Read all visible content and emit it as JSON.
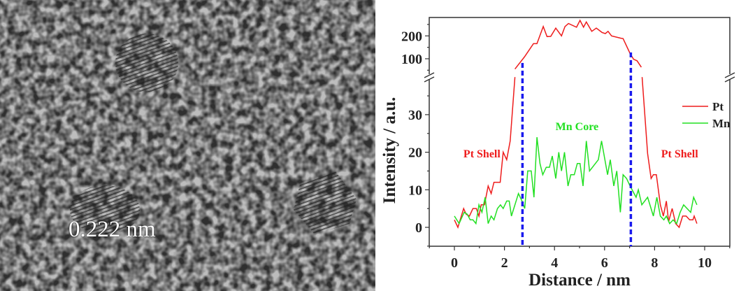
{
  "image_panel": {
    "scale_label": "0.222 nm"
  },
  "chart_data": {
    "type": "line",
    "xlabel": "Distance / nm",
    "ylabel": "Intensity / a.u.",
    "xlim": [
      -1,
      11
    ],
    "x_ticks": [
      0,
      2,
      4,
      6,
      8,
      10
    ],
    "y_lower_range": [
      -5,
      40
    ],
    "y_upper_range": [
      20,
      282
    ],
    "y_lower_ticks": [
      0,
      10,
      20,
      30
    ],
    "y_upper_ticks": [
      100,
      200
    ],
    "axis_break": true,
    "grid": false,
    "legend_position": "right",
    "colors": {
      "Pt": "#ee1c1c",
      "Mn": "#22e022",
      "boundary": "#1a1aee"
    },
    "series": [
      {
        "name": "Pt",
        "points": [
          [
            0,
            2
          ],
          [
            0.14,
            0
          ],
          [
            0.37,
            5
          ],
          [
            0.47,
            3.5
          ],
          [
            0.6,
            3
          ],
          [
            0.74,
            5
          ],
          [
            0.88,
            5
          ],
          [
            0.98,
            3
          ],
          [
            1.07,
            6
          ],
          [
            1.2,
            6
          ],
          [
            1.35,
            11
          ],
          [
            1.47,
            9
          ],
          [
            1.58,
            12
          ],
          [
            1.83,
            12
          ],
          [
            1.95,
            20
          ],
          [
            2.09,
            18
          ],
          [
            2.23,
            23
          ],
          [
            2.42,
            40
          ],
          [
            2.42,
            55
          ],
          [
            2.8,
            108
          ],
          [
            3.16,
            166
          ],
          [
            3.3,
            166
          ],
          [
            3.55,
            241
          ],
          [
            3.7,
            197
          ],
          [
            3.85,
            198
          ],
          [
            4.05,
            234
          ],
          [
            4.28,
            200
          ],
          [
            4.42,
            241
          ],
          [
            4.56,
            254
          ],
          [
            4.88,
            238
          ],
          [
            5.02,
            268
          ],
          [
            5.16,
            238
          ],
          [
            5.27,
            261
          ],
          [
            5.49,
            220
          ],
          [
            5.67,
            234
          ],
          [
            5.9,
            215
          ],
          [
            6.03,
            210
          ],
          [
            6.14,
            220
          ],
          [
            6.28,
            200
          ],
          [
            6.65,
            190
          ],
          [
            6.74,
            188
          ],
          [
            7.02,
            123
          ],
          [
            7.16,
            98
          ],
          [
            7.3,
            91
          ],
          [
            7.47,
            63
          ],
          [
            7.5,
            40
          ],
          [
            7.72,
            19.6
          ],
          [
            7.86,
            13
          ],
          [
            7.95,
            14
          ],
          [
            8.07,
            14
          ],
          [
            8.23,
            6
          ],
          [
            8.35,
            3
          ],
          [
            8.47,
            7
          ],
          [
            8.56,
            1.5
          ],
          [
            8.7,
            5
          ],
          [
            8.84,
            1
          ],
          [
            8.98,
            0
          ],
          [
            9.12,
            3
          ],
          [
            9.26,
            3
          ],
          [
            9.4,
            2
          ],
          [
            9.53,
            2
          ],
          [
            9.58,
            3
          ],
          [
            9.69,
            1
          ]
        ]
      },
      {
        "name": "Mn",
        "points": [
          [
            0,
            3
          ],
          [
            0.19,
            1
          ],
          [
            0.39,
            4
          ],
          [
            0.51,
            3.5
          ],
          [
            0.63,
            2
          ],
          [
            0.74,
            2
          ],
          [
            0.86,
            1
          ],
          [
            0.98,
            6
          ],
          [
            1.1,
            4
          ],
          [
            1.23,
            8
          ],
          [
            1.35,
            1
          ],
          [
            1.47,
            3
          ],
          [
            1.58,
            2
          ],
          [
            1.72,
            5
          ],
          [
            1.84,
            6
          ],
          [
            1.95,
            5
          ],
          [
            2.09,
            7
          ],
          [
            2.19,
            7
          ],
          [
            2.28,
            3
          ],
          [
            2.56,
            9
          ],
          [
            2.7,
            7
          ],
          [
            2.81,
            5
          ],
          [
            2.93,
            15
          ],
          [
            3.07,
            15
          ],
          [
            3.18,
            8
          ],
          [
            3.3,
            24
          ],
          [
            3.42,
            17
          ],
          [
            3.53,
            14
          ],
          [
            3.67,
            16
          ],
          [
            3.8,
            16
          ],
          [
            3.91,
            19
          ],
          [
            4.05,
            13
          ],
          [
            4.17,
            20
          ],
          [
            4.28,
            15
          ],
          [
            4.4,
            20
          ],
          [
            4.54,
            11
          ],
          [
            4.65,
            14
          ],
          [
            4.79,
            14
          ],
          [
            4.91,
            17
          ],
          [
            5.02,
            17
          ],
          [
            5.14,
            11
          ],
          [
            5.27,
            23
          ],
          [
            5.4,
            15
          ],
          [
            5.75,
            18
          ],
          [
            5.88,
            23
          ],
          [
            6.12,
            14
          ],
          [
            6.23,
            18
          ],
          [
            6.37,
            11
          ],
          [
            6.49,
            15
          ],
          [
            6.63,
            4
          ],
          [
            6.74,
            14
          ],
          [
            6.88,
            13
          ],
          [
            7.02,
            11
          ],
          [
            7.26,
            8
          ],
          [
            7.35,
            10
          ],
          [
            7.49,
            6
          ],
          [
            7.72,
            8
          ],
          [
            7.95,
            3
          ],
          [
            8.09,
            8
          ],
          [
            8.23,
            3
          ],
          [
            8.37,
            2
          ],
          [
            8.47,
            3
          ],
          [
            8.6,
            1
          ],
          [
            8.74,
            2
          ],
          [
            8.88,
            1
          ],
          [
            9.02,
            4
          ],
          [
            9.16,
            6
          ],
          [
            9.44,
            4
          ],
          [
            9.56,
            8
          ],
          [
            9.69,
            6
          ]
        ]
      }
    ],
    "boundaries_x": [
      2.72,
      7.05
    ],
    "annotations": [
      {
        "text": "Pt Shell",
        "x": 1.1,
        "y": 19.7,
        "color": "#ee1c1c"
      },
      {
        "text": "Mn Core",
        "x": 4.9,
        "y": 27,
        "color": "#22e022"
      },
      {
        "text": "Pt Shell",
        "x": 9.0,
        "y": 19.7,
        "color": "#ee1c1c"
      }
    ]
  }
}
